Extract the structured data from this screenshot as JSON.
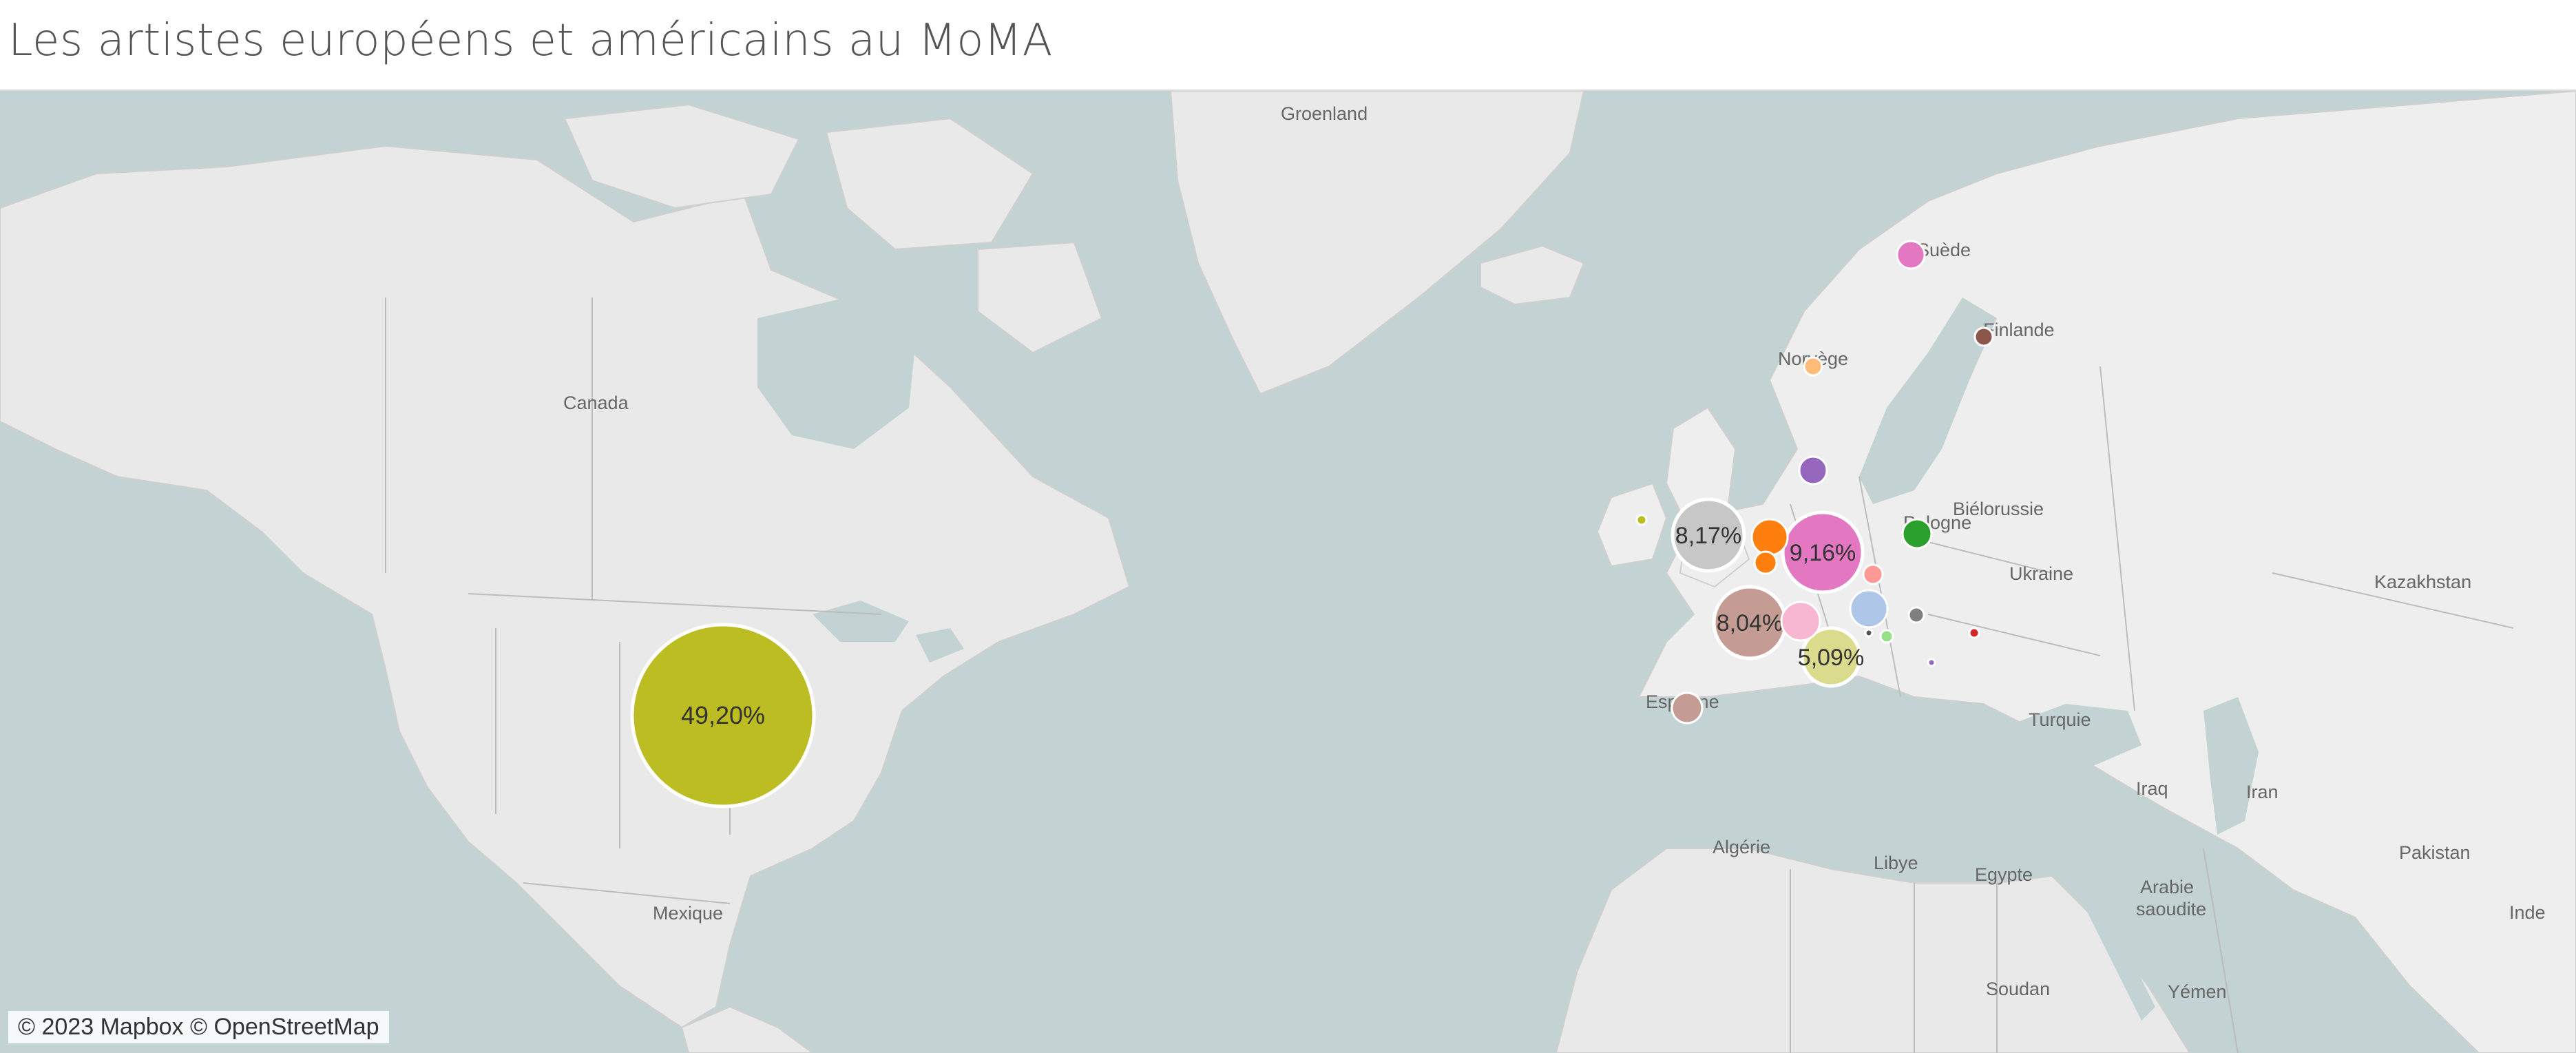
{
  "title": "Les artistes européens et américains au MoMA",
  "attribution": "© 2023 Mapbox © OpenStreetMap",
  "colors": {
    "water": "#c3d3d3",
    "land": "#e9e9e9",
    "land_alt": "#eeeeee",
    "border": "#bcbcbc",
    "label": "#666666"
  },
  "geo_labels": [
    {
      "key": "groenland",
      "text": "Groenland"
    },
    {
      "key": "canada",
      "text": "Canada"
    },
    {
      "key": "mexique",
      "text": "Mexique"
    },
    {
      "key": "suede",
      "text": "Suède"
    },
    {
      "key": "finlande",
      "text": "Finlande"
    },
    {
      "key": "norvege",
      "text": "Norvège"
    },
    {
      "key": "bielorussie",
      "text": "Biélorussie"
    },
    {
      "key": "pologne",
      "text": "Pologne"
    },
    {
      "key": "ukraine",
      "text": "Ukraine"
    },
    {
      "key": "kazakhstan",
      "text": "Kazakhstan"
    },
    {
      "key": "turquie",
      "text": "Turquie"
    },
    {
      "key": "espagne",
      "text": "Espagne"
    },
    {
      "key": "algerie",
      "text": "Algérie"
    },
    {
      "key": "libye",
      "text": "Libye"
    },
    {
      "key": "egypte",
      "text": "Egypte"
    },
    {
      "key": "irak",
      "text": "Iraq"
    },
    {
      "key": "iran",
      "text": "Iran"
    },
    {
      "key": "arabie",
      "text": "Arabie saoudite"
    },
    {
      "key": "pakistan",
      "text": "Pakistan"
    },
    {
      "key": "inde",
      "text": "Inde"
    },
    {
      "key": "soudan",
      "text": "Soudan"
    },
    {
      "key": "yemen",
      "text": "Yémen"
    }
  ],
  "chart_data": {
    "type": "proportional-symbol-map",
    "measure": "share of artists (%)",
    "points": [
      {
        "id": "usa",
        "value": 49.2,
        "label": "49,20%",
        "color": "#bcbd22"
      },
      {
        "id": "germany",
        "value": 9.16,
        "label": "9,16%",
        "color": "#e377c2"
      },
      {
        "id": "uk",
        "value": 8.17,
        "label": "8,17%",
        "color": "#c7c7c7"
      },
      {
        "id": "france",
        "value": 8.04,
        "label": "8,04%",
        "color": "#c49c94"
      },
      {
        "id": "italy",
        "value": 5.09,
        "label": "5,09%",
        "color": "#dbdb8d"
      },
      {
        "id": "netherlands",
        "label": "",
        "color": "#ff7f0e"
      },
      {
        "id": "belgium",
        "label": "",
        "color": "#ff7f0e"
      },
      {
        "id": "switzerland",
        "label": "",
        "color": "#f7b6d2"
      },
      {
        "id": "austria",
        "label": "",
        "color": "#aec7e8"
      },
      {
        "id": "denmark",
        "label": "",
        "color": "#9467bd"
      },
      {
        "id": "sweden",
        "label": "",
        "color": "#e377c2"
      },
      {
        "id": "spain",
        "label": "",
        "color": "#c49c94"
      },
      {
        "id": "poland",
        "label": "",
        "color": "#2ca02c"
      },
      {
        "id": "czechia",
        "label": "",
        "color": "#ff9896"
      },
      {
        "id": "norway",
        "label": "",
        "color": "#ffbb78"
      },
      {
        "id": "finland",
        "label": "",
        "color": "#8c564b"
      },
      {
        "id": "hungary",
        "label": "",
        "color": "#7f7f7f"
      },
      {
        "id": "romania",
        "label": "",
        "color": "#d62728"
      },
      {
        "id": "ireland",
        "label": "",
        "color": "#bcbd22"
      },
      {
        "id": "croatia",
        "label": "",
        "color": "#98df8a"
      },
      {
        "id": "serbia",
        "label": "",
        "color": "#9467bd"
      },
      {
        "id": "slovenia",
        "label": "",
        "color": "#555555"
      }
    ]
  }
}
